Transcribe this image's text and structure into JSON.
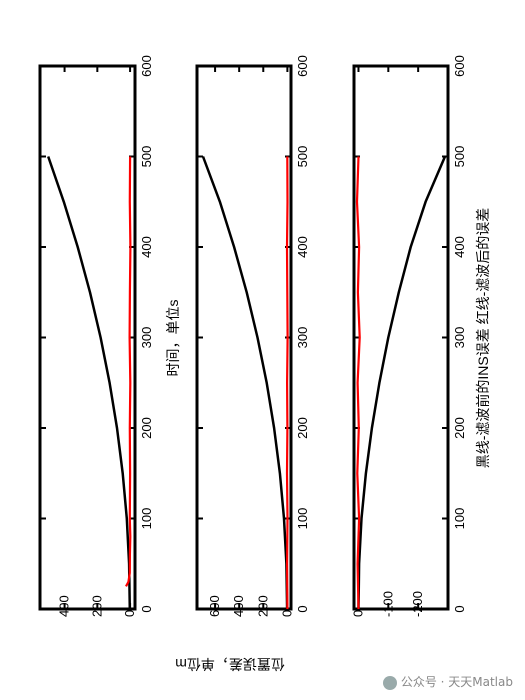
{
  "chart_data": {
    "type": "line",
    "figure_rotation": "rotated 90° counter-clockwise",
    "shared_x": {
      "label": "时间，单位s",
      "range": [
        0,
        600
      ],
      "ticks": [
        0,
        100,
        200,
        300,
        400,
        500,
        600
      ]
    },
    "shared_ylabel": "位置误差，单位m",
    "caption": "黑线-滤波前的INS误差   红线-滤波后的误差",
    "panels": [
      {
        "name": "panel-1",
        "ylim": [
          -30,
          550
        ],
        "yticks": [
          0,
          200,
          400
        ],
        "series": [
          {
            "color": "#000000",
            "kind": "ins-error",
            "x": [
              0,
              50,
              100,
              150,
              200,
              250,
              300,
              350,
              400,
              450,
              500
            ],
            "y": [
              2,
              6,
              20,
              45,
              80,
              125,
              180,
              245,
              320,
              405,
              500
            ]
          },
          {
            "color": "#ff0000",
            "kind": "filtered-error",
            "x": [
              25,
              30,
              40,
              60,
              80,
              100,
              150,
              200,
              250,
              300,
              350,
              400,
              450,
              500
            ],
            "y": [
              25,
              10,
              2,
              1,
              -1,
              2,
              0,
              2,
              -1,
              3,
              1,
              -2,
              2,
              0
            ]
          }
        ]
      },
      {
        "name": "panel-2",
        "ylim": [
          -30,
          750
        ],
        "yticks": [
          0,
          200,
          400,
          600
        ],
        "series": [
          {
            "color": "#000000",
            "kind": "ins-error",
            "x": [
              0,
              50,
              100,
              150,
              200,
              250,
              300,
              350,
              400,
              450,
              500
            ],
            "y": [
              2,
              8,
              28,
              62,
              110,
              172,
              248,
              338,
              442,
              560,
              700
            ]
          },
          {
            "color": "#ff0000",
            "kind": "filtered-error",
            "x": [
              0,
              50,
              100,
              150,
              200,
              250,
              300,
              350,
              400,
              450,
              500
            ],
            "y": [
              0,
              2,
              -1,
              3,
              0,
              2,
              -2,
              1,
              3,
              -1,
              1
            ]
          }
        ]
      },
      {
        "name": "panel-3",
        "ylim": [
          -300,
          15
        ],
        "yticks": [
          -200,
          -100,
          0
        ],
        "series": [
          {
            "color": "#000000",
            "kind": "ins-error",
            "x": [
              0,
              50,
              100,
              150,
              200,
              250,
              300,
              350,
              400,
              450,
              500
            ],
            "y": [
              0,
              -2,
              -10,
              -25,
              -45,
              -70,
              -100,
              -135,
              -175,
              -225,
              -290
            ]
          },
          {
            "color": "#ff0000",
            "kind": "filtered-error",
            "x": [
              0,
              50,
              100,
              150,
              200,
              250,
              300,
              350,
              400,
              450,
              500
            ],
            "y": [
              0,
              3,
              -2,
              4,
              -1,
              3,
              -4,
              2,
              -2,
              5,
              0
            ]
          }
        ]
      }
    ]
  },
  "watermark": "公众号 · 天天Matlab"
}
